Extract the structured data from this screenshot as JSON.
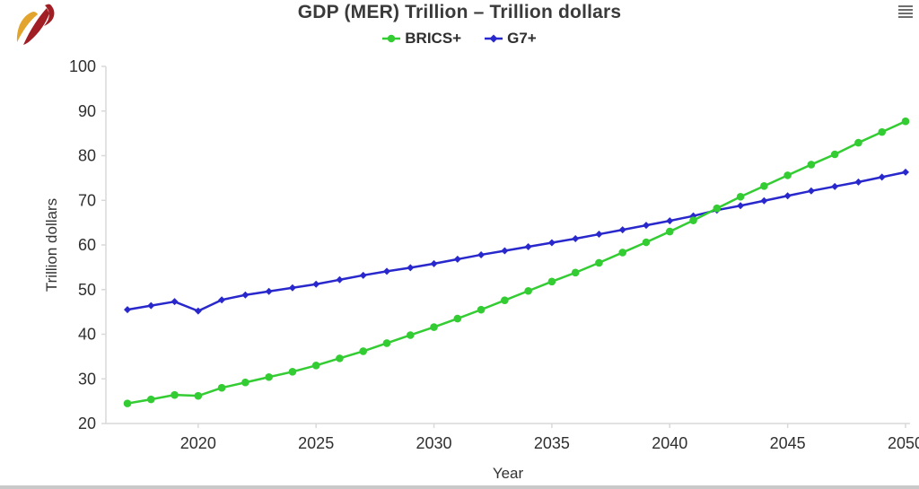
{
  "header": {
    "title": "GDP (MER) Trillion – Trillion dollars",
    "menu_icon": "hamburger-icon"
  },
  "logo": {
    "name": "flame-logo",
    "colors": {
      "yellow": "#e2a42c",
      "red": "#a01e24"
    }
  },
  "chart_data": {
    "type": "line",
    "title": "GDP (MER) Trillion – Trillion dollars",
    "xlabel": "Year",
    "ylabel": "Trillion dollars",
    "x": [
      2017,
      2018,
      2019,
      2020,
      2021,
      2022,
      2023,
      2024,
      2025,
      2026,
      2027,
      2028,
      2029,
      2030,
      2031,
      2032,
      2033,
      2034,
      2035,
      2036,
      2037,
      2038,
      2039,
      2040,
      2041,
      2042,
      2043,
      2044,
      2045,
      2046,
      2047,
      2048,
      2049,
      2050
    ],
    "series": [
      {
        "name": "BRICS+",
        "color": "#33cc33",
        "marker": "circle",
        "values": [
          24.5,
          25.4,
          26.4,
          26.2,
          28.0,
          29.2,
          30.4,
          31.6,
          33.0,
          34.6,
          36.2,
          38.0,
          39.8,
          41.6,
          43.5,
          45.5,
          47.6,
          49.7,
          51.8,
          53.8,
          56.0,
          58.3,
          60.6,
          63.0,
          65.5,
          68.2,
          70.8,
          73.2,
          75.6,
          78.0,
          80.3,
          82.9,
          85.3,
          87.7
        ]
      },
      {
        "name": "G7+",
        "color": "#2828cc",
        "marker": "diamond",
        "values": [
          45.5,
          46.4,
          47.3,
          45.2,
          47.7,
          48.8,
          49.6,
          50.4,
          51.2,
          52.2,
          53.2,
          54.1,
          54.9,
          55.8,
          56.8,
          57.8,
          58.7,
          59.6,
          60.5,
          61.4,
          62.4,
          63.4,
          64.4,
          65.4,
          66.5,
          67.8,
          68.8,
          69.9,
          71.0,
          72.1,
          73.1,
          74.1,
          75.2,
          76.3
        ]
      }
    ],
    "ylim": [
      20,
      100
    ],
    "yticks": [
      20,
      30,
      40,
      50,
      60,
      70,
      80,
      90,
      100
    ],
    "xticks": [
      2020,
      2025,
      2030,
      2035,
      2040,
      2045,
      2050
    ],
    "grid": false,
    "legend_position": "top",
    "axis_color": "#d9d9d9",
    "tick_label_color": "#2f2f2f"
  }
}
